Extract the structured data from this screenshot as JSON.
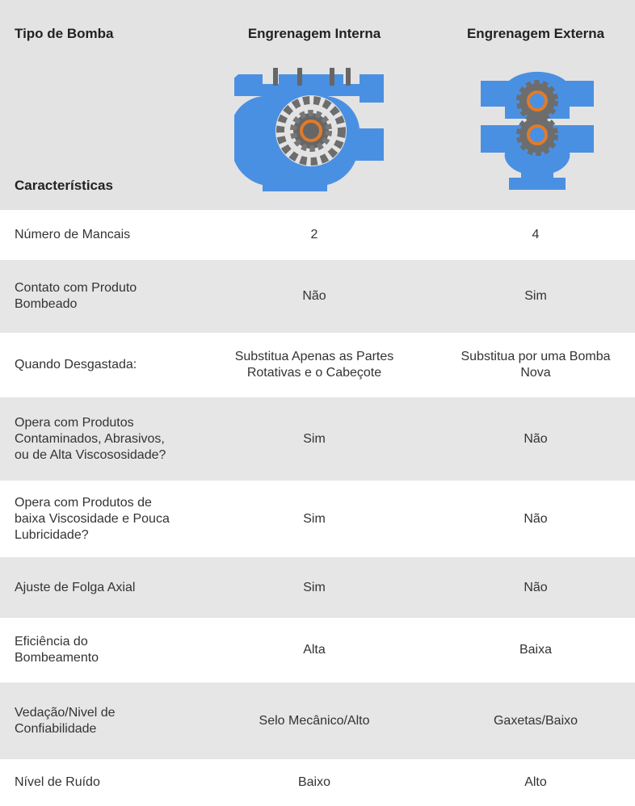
{
  "header": {
    "row_label": "Tipo de Bomba",
    "columns": [
      "Engrenagem Interna",
      "Engrenagem Externa"
    ],
    "section_label": "Características"
  },
  "table": {
    "rows": [
      [
        "Número de Mancais",
        "2",
        "4"
      ],
      [
        "Contato com Produto\nBombeado",
        "Não",
        "Sim"
      ],
      [
        "Quando Desgastada:",
        "Substitua Apenas as Partes\nRotativas e o Cabeçote",
        "Substitua por uma Bomba\nNova"
      ],
      [
        "Opera com Produtos\nContaminados, Abrasivos,\nou de Alta Viscososidade?",
        "Sim",
        "Não"
      ],
      [
        "Opera com Produtos de\nbaixa Viscosidade e Pouca\nLubricidade?",
        "Sim",
        "Não"
      ],
      [
        "Ajuste de Folga Axial",
        "Sim",
        "Não"
      ],
      [
        "Eficiência do\nBombeamento",
        "Alta",
        "Baixa"
      ],
      [
        "Vedação/Nivel de\nConfiabilidade",
        "Selo Mecânico/Alto",
        "Gaxetas/Baixo"
      ],
      [
        "Nível de Ruído",
        "Baixo",
        "Alto"
      ]
    ]
  }
}
